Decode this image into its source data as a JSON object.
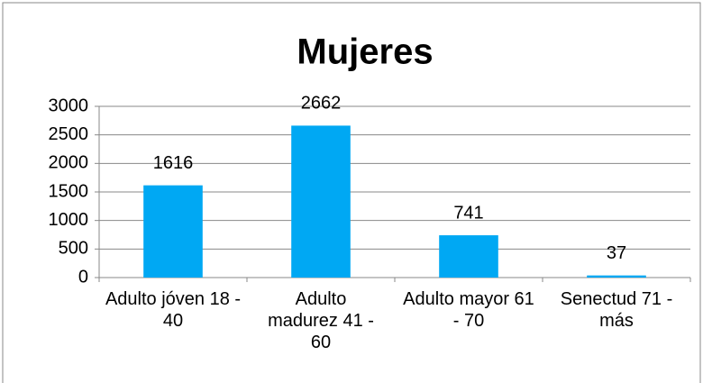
{
  "chart_data": {
    "type": "bar",
    "title": "Mujeres",
    "categories": [
      "Adulto jóven 18 - 40",
      "Adulto madurez 41 - 60",
      "Adulto mayor 61 - 70",
      "Senectud 71 - más"
    ],
    "values": [
      1616,
      2662,
      741,
      37
    ],
    "color": "#00a8f3",
    "ylim": [
      0,
      3000
    ],
    "yticks": [
      0,
      500,
      1000,
      1500,
      2000,
      2500,
      3000
    ],
    "grid": true
  }
}
